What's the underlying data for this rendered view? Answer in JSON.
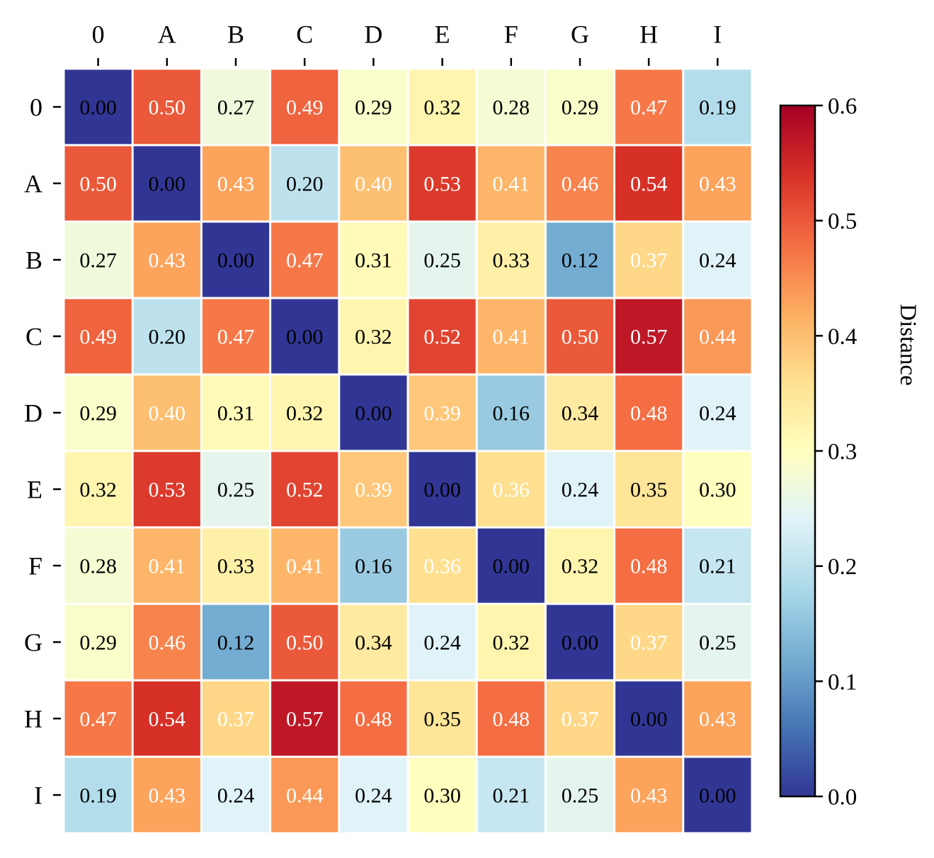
{
  "chart_data": {
    "type": "heatmap",
    "title": "",
    "xlabel": "",
    "ylabel": "",
    "x_labels": [
      "0",
      "A",
      "B",
      "C",
      "D",
      "E",
      "F",
      "G",
      "H",
      "I"
    ],
    "y_labels": [
      "0",
      "A",
      "B",
      "C",
      "D",
      "E",
      "F",
      "G",
      "H",
      "I"
    ],
    "value_format": "2 decimals",
    "values": [
      [
        0.0,
        0.5,
        0.27,
        0.49,
        0.29,
        0.32,
        0.28,
        0.29,
        0.47,
        0.19
      ],
      [
        0.5,
        0.0,
        0.43,
        0.2,
        0.4,
        0.53,
        0.41,
        0.46,
        0.54,
        0.43
      ],
      [
        0.27,
        0.43,
        0.0,
        0.47,
        0.31,
        0.25,
        0.33,
        0.12,
        0.37,
        0.24
      ],
      [
        0.49,
        0.2,
        0.47,
        0.0,
        0.32,
        0.52,
        0.41,
        0.5,
        0.57,
        0.44
      ],
      [
        0.29,
        0.4,
        0.31,
        0.32,
        0.0,
        0.39,
        0.16,
        0.34,
        0.48,
        0.24
      ],
      [
        0.32,
        0.53,
        0.25,
        0.52,
        0.39,
        0.0,
        0.36,
        0.24,
        0.35,
        0.3
      ],
      [
        0.28,
        0.41,
        0.33,
        0.41,
        0.16,
        0.36,
        0.0,
        0.32,
        0.48,
        0.21
      ],
      [
        0.29,
        0.46,
        0.12,
        0.5,
        0.34,
        0.24,
        0.32,
        0.0,
        0.37,
        0.25
      ],
      [
        0.47,
        0.54,
        0.37,
        0.57,
        0.48,
        0.35,
        0.48,
        0.37,
        0.0,
        0.43
      ],
      [
        0.19,
        0.43,
        0.24,
        0.44,
        0.24,
        0.3,
        0.21,
        0.25,
        0.43,
        0.0
      ]
    ],
    "colorbar": {
      "label": "Distance",
      "min": 0.0,
      "max": 0.6,
      "ticks": [
        0.0,
        0.1,
        0.2,
        0.3,
        0.4,
        0.5,
        0.6
      ],
      "tick_labels": [
        "0.0",
        "0.1",
        "0.2",
        "0.3",
        "0.4",
        "0.5",
        "0.6"
      ],
      "colormap": "RdYlBu_r",
      "stops": [
        "#313695",
        "#4575b4",
        "#74add1",
        "#abd9e9",
        "#e0f3f8",
        "#ffffbf",
        "#fee090",
        "#fdae61",
        "#f46d43",
        "#d73027",
        "#a50026"
      ]
    },
    "x_axis_position": "top",
    "text_color_light": "#ffffff",
    "text_color_dark": "#000000",
    "grid_line_color": "#ffffff"
  }
}
